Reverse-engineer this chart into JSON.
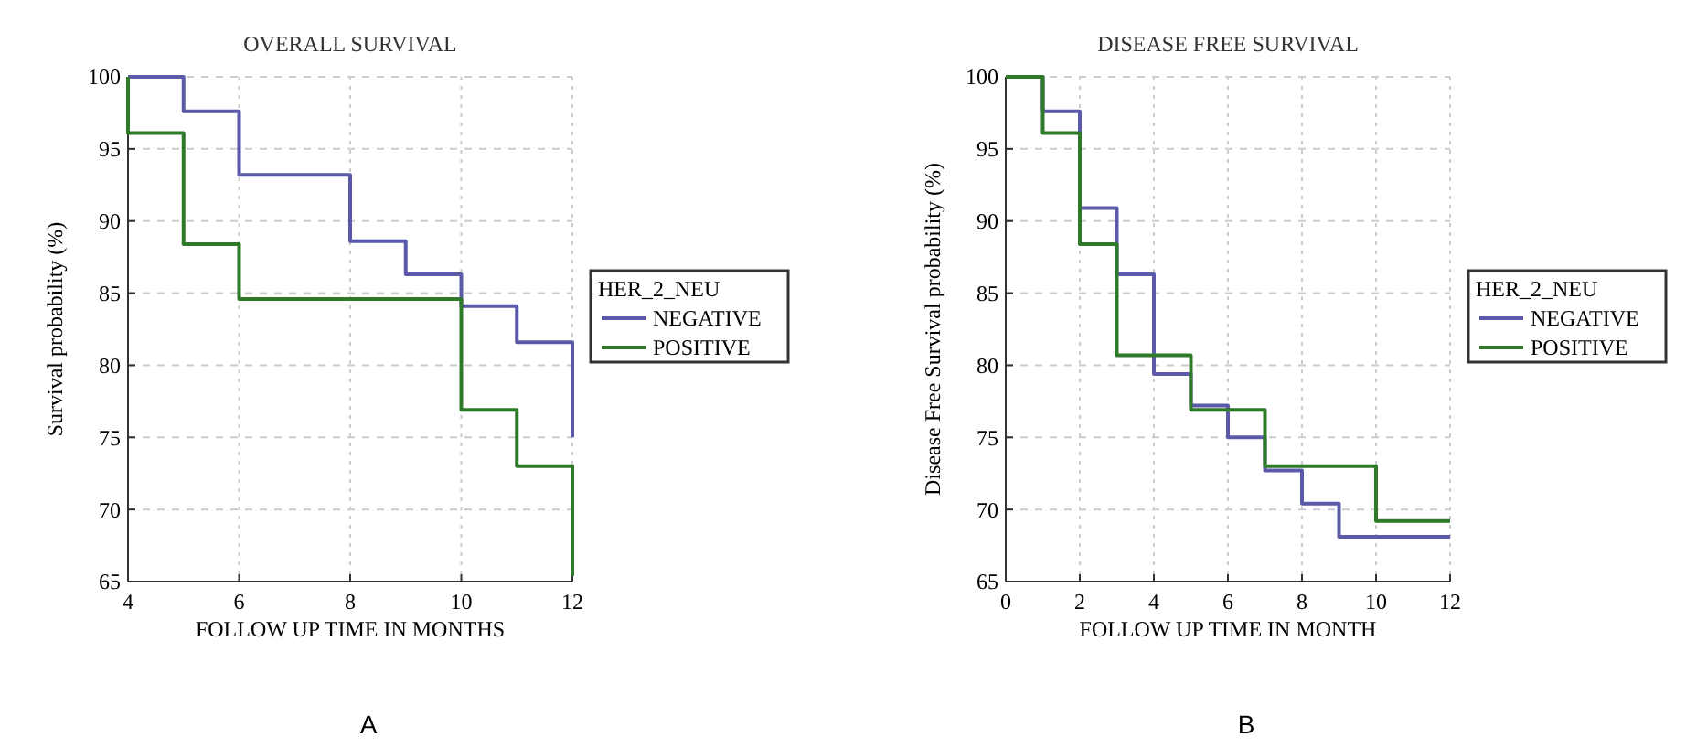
{
  "chart_data": [
    {
      "type": "step",
      "title": "OVERALL SURVIVAL",
      "xlabel": "FOLLOW UP TIME IN MONTHS",
      "ylabel": "Survival probability (%)",
      "legend_title": "HER_2_NEU",
      "annotations": [
        "A"
      ],
      "series": [
        {
          "name": "NEGATIVE",
          "color": "#5a5aa8",
          "x": [
            4,
            5,
            6,
            8,
            9,
            10,
            11,
            12
          ],
          "values": [
            100,
            97.6,
            93.2,
            88.6,
            86.3,
            84.1,
            81.6,
            75
          ]
        },
        {
          "name": "POSITIVE",
          "color": "#2f7a2a",
          "x": [
            4,
            4,
            5,
            6,
            10,
            11,
            12
          ],
          "values": [
            100,
            96.1,
            88.4,
            84.6,
            76.9,
            73,
            65.4
          ]
        }
      ],
      "xlim": [
        4,
        12
      ],
      "xticks": [
        4,
        6,
        8,
        10,
        12
      ],
      "ylim": [
        65,
        100
      ],
      "yticks": [
        65,
        70,
        75,
        80,
        85,
        90,
        95,
        100
      ],
      "grid": true,
      "legend": "right",
      "line_style": "solid",
      "marker": "none"
    },
    {
      "type": "step",
      "title": "DISEASE FREE SURVIVAL",
      "xlabel": "FOLLOW UP TIME IN MONTH",
      "ylabel": "Disease Free Survival probability (%)",
      "legend_title": "HER_2_NEU",
      "annotations": [
        "B"
      ],
      "series": [
        {
          "name": "NEGATIVE",
          "color": "#5a5aa8",
          "x": [
            0,
            1,
            2,
            3,
            4,
            5,
            6,
            7,
            8,
            9,
            12
          ],
          "values": [
            100,
            97.6,
            90.9,
            86.3,
            79.4,
            77.2,
            75,
            72.7,
            70.4,
            68.1,
            68.1
          ]
        },
        {
          "name": "POSITIVE",
          "color": "#2f7a2a",
          "x": [
            0,
            1,
            2,
            3,
            5,
            7,
            10,
            12
          ],
          "values": [
            100,
            96.1,
            88.4,
            80.7,
            76.9,
            73,
            69.2,
            69.2
          ]
        }
      ],
      "xlim": [
        0,
        12
      ],
      "xticks": [
        0,
        2,
        4,
        6,
        8,
        10,
        12
      ],
      "ylim": [
        65,
        100
      ],
      "yticks": [
        65,
        70,
        75,
        80,
        85,
        90,
        95,
        100
      ],
      "grid": true,
      "legend": "right",
      "line_style": "solid",
      "marker": "none"
    }
  ]
}
